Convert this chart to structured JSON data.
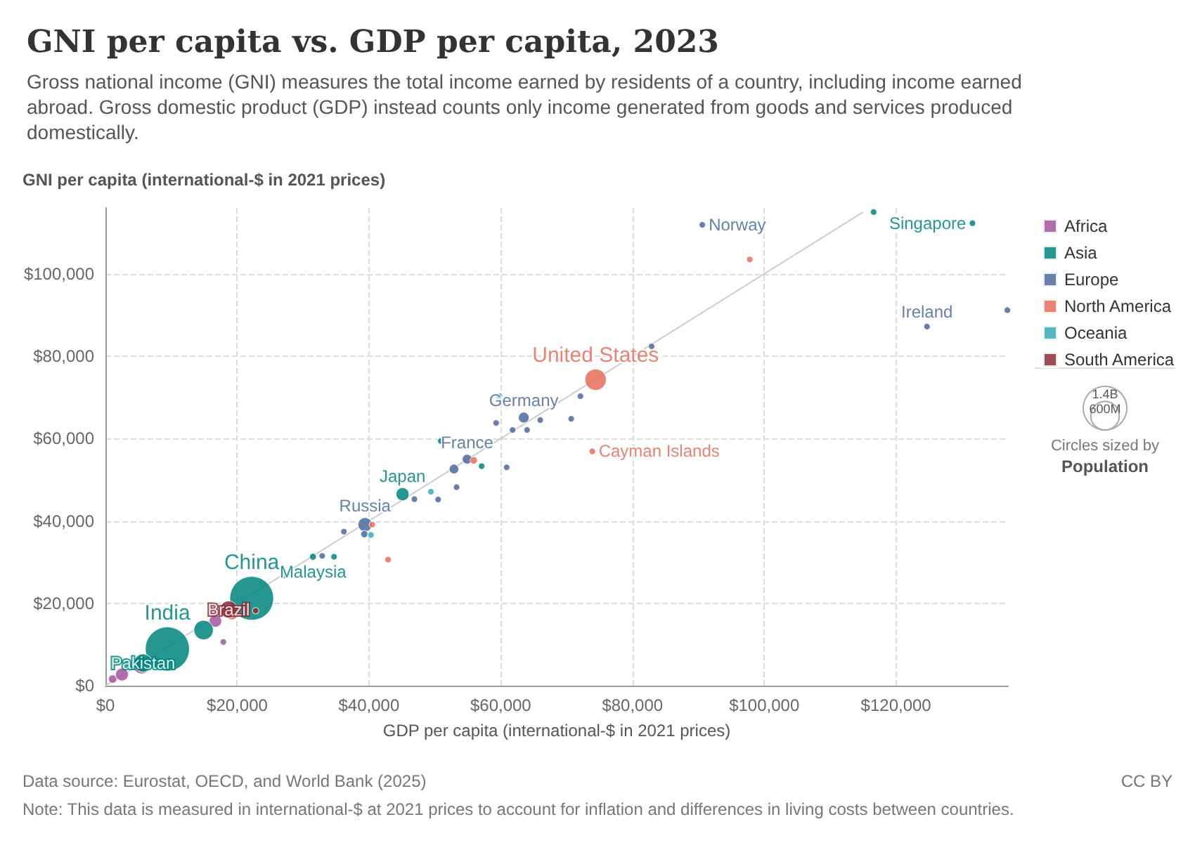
{
  "chart_data": {
    "type": "bubble",
    "title": "GNI per capita vs. GDP per capita, 2023",
    "subtitle": "Gross national income (GNI) measures the total income earned by residents of a country, including income earned abroad. Gross domestic product (GDP) instead counts only income generated from goods and services produced domestically.",
    "xlabel": "GDP per capita (international-$ in 2021 prices)",
    "ylabel": "GNI per capita (international-$ in 2021 prices)",
    "xlim": [
      0,
      137000
    ],
    "ylim": [
      0,
      116000
    ],
    "xticks": [
      {
        "value": 0,
        "label": "$0"
      },
      {
        "value": 20000,
        "label": "$20,000"
      },
      {
        "value": 40000,
        "label": "$40,000"
      },
      {
        "value": 60000,
        "label": "$60,000"
      },
      {
        "value": 80000,
        "label": "$80,000"
      },
      {
        "value": 100000,
        "label": "$100,000"
      },
      {
        "value": 120000,
        "label": "$120,000"
      }
    ],
    "yticks": [
      {
        "value": 0,
        "label": "$0"
      },
      {
        "value": 20000,
        "label": "$20,000"
      },
      {
        "value": 40000,
        "label": "$40,000"
      },
      {
        "value": 60000,
        "label": "$60,000"
      },
      {
        "value": 80000,
        "label": "$80,000"
      },
      {
        "value": 100000,
        "label": "$100,000"
      }
    ],
    "grid": true,
    "legend": "right",
    "marker": "circle",
    "size_legend": [
      {
        "value": 600,
        "label": "600M"
      },
      {
        "value": 1400,
        "label": "1.4B"
      }
    ],
    "series": [
      {
        "type": "line",
        "color": "#c8c8c8",
        "line_style": "dotted",
        "marker": "none",
        "x": [
          0,
          115000
        ],
        "values": [
          0,
          115000
        ]
      },
      {
        "name": "Africa",
        "color": "#a2559c",
        "x": [
          1100,
          2500,
          5500,
          16700,
          17900
        ],
        "values": [
          1600,
          2700,
          5000,
          15700,
          10600
        ],
        "sizes": [
          50,
          120,
          225,
          112,
          30
        ]
      },
      {
        "name": "Asia",
        "color": "#00847e",
        "x": [
          116600,
          131600,
          59800,
          50900,
          57100,
          45100,
          31500,
          34700,
          22200,
          9400,
          14900,
          5700
        ],
        "values": [
          115000,
          112300,
          70300,
          59400,
          53300,
          46500,
          31300,
          31300,
          21200,
          8900,
          13500,
          5500
        ],
        "sizes": [
          30,
          30,
          30,
          30,
          30,
          124,
          35,
          30,
          1410,
          1430,
          278,
          240
        ]
      },
      {
        "name": "Europe",
        "color": "#4c6a9c",
        "x": [
          90600,
          124700,
          136900,
          82900,
          63500,
          72100,
          59300,
          61800,
          64000,
          66000,
          70700,
          54900,
          60900,
          52900,
          53300,
          50500,
          46900,
          39400,
          36200,
          39300,
          32900,
          27000
        ],
        "values": [
          111900,
          87200,
          91200,
          82400,
          65100,
          70300,
          63800,
          62100,
          62100,
          64500,
          64800,
          55000,
          53000,
          52600,
          48200,
          45200,
          45300,
          39100,
          37400,
          36800,
          31500,
          26700
        ],
        "sizes": [
          30,
          30,
          30,
          30,
          84,
          30,
          30,
          30,
          30,
          30,
          30,
          68,
          30,
          67,
          30,
          30,
          30,
          144,
          30,
          38,
          30,
          30
        ]
      },
      {
        "name": "North America",
        "color": "#e56e5a",
        "x": [
          74400,
          97800,
          73900,
          55900,
          42900,
          40500,
          19200
        ],
        "values": [
          74300,
          103500,
          56900,
          54700,
          30600,
          39100,
          17600
        ],
        "sizes": [
          335,
          30,
          30,
          39,
          30,
          30,
          128
        ]
      },
      {
        "name": "Oceania",
        "color": "#38aaba",
        "x": [
          49400,
          40300
        ],
        "values": [
          47100,
          36600
        ],
        "sizes": [
          30,
          30
        ]
      },
      {
        "name": "South America",
        "color": "#883039",
        "x": [
          18700,
          22800
        ],
        "values": [
          18500,
          18200
        ],
        "sizes": [
          216,
          30
        ]
      }
    ],
    "annotations": [
      {
        "text": "Norway",
        "x": 90600,
        "y": 111900
      },
      {
        "text": "Singapore",
        "x": 131600,
        "y": 112300
      },
      {
        "text": "Ireland",
        "x": 124700,
        "y": 87200
      },
      {
        "text": "United States",
        "x": 74400,
        "y": 74300
      },
      {
        "text": "Germany",
        "x": 63500,
        "y": 65100
      },
      {
        "text": "Cayman Islands",
        "x": 73900,
        "y": 56900
      },
      {
        "text": "France",
        "x": 54900,
        "y": 55000
      },
      {
        "text": "Japan",
        "x": 45100,
        "y": 46500
      },
      {
        "text": "Russia",
        "x": 39400,
        "y": 39100
      },
      {
        "text": "Malaysia",
        "x": 31500,
        "y": 31300
      },
      {
        "text": "China",
        "x": 22200,
        "y": 21200
      },
      {
        "text": "Brazil",
        "x": 18700,
        "y": 18500
      },
      {
        "text": "India",
        "x": 9400,
        "y": 8900
      },
      {
        "text": "Pakistan",
        "x": 5700,
        "y": 5500
      },
      "Data source: Eurostat, OECD, and World Bank (2025)",
      "CC BY",
      "Note: This data is measured in international-$ at 2021 prices to account for inflation and differences in living costs between countries.",
      "Circles sized by",
      "Population"
    ]
  }
}
